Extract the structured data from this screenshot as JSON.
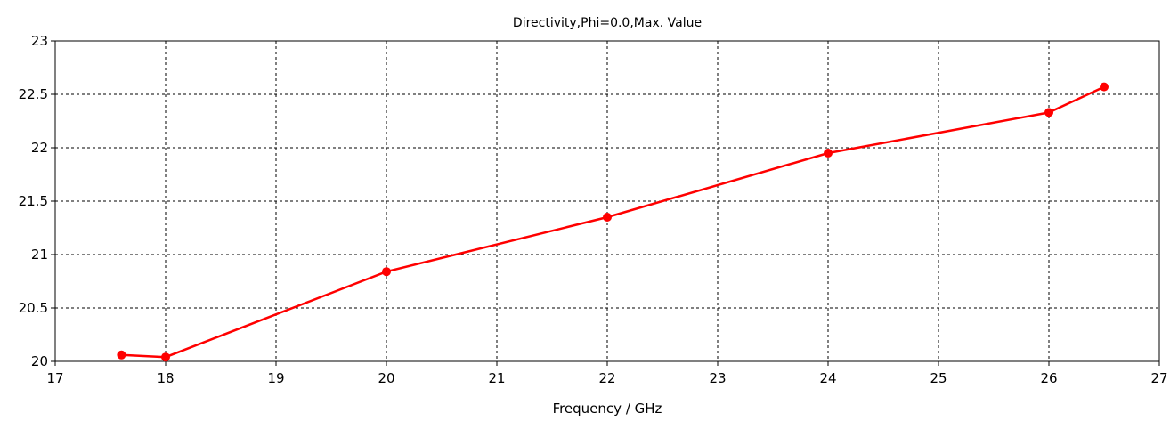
{
  "chart_data": {
    "type": "line",
    "title": "Directivity,Phi=0.0,Max. Value",
    "xlabel": "Frequency / GHz",
    "ylabel": "",
    "xlim": [
      17,
      27
    ],
    "ylim": [
      20,
      23
    ],
    "x_ticks": [
      "17",
      "18",
      "19",
      "20",
      "21",
      "22",
      "23",
      "24",
      "25",
      "26",
      "27"
    ],
    "y_ticks": [
      "20",
      "20.5",
      "21",
      "21.5",
      "22",
      "22.5",
      "23"
    ],
    "grid": true,
    "grid_style": "dashed",
    "series": [
      {
        "color": "#ff0000",
        "marker": "circle",
        "x": [
          17.6,
          18,
          20,
          22,
          24,
          26,
          26.5
        ],
        "y": [
          20.06,
          20.04,
          20.84,
          21.35,
          21.95,
          22.33,
          22.57
        ]
      }
    ]
  }
}
